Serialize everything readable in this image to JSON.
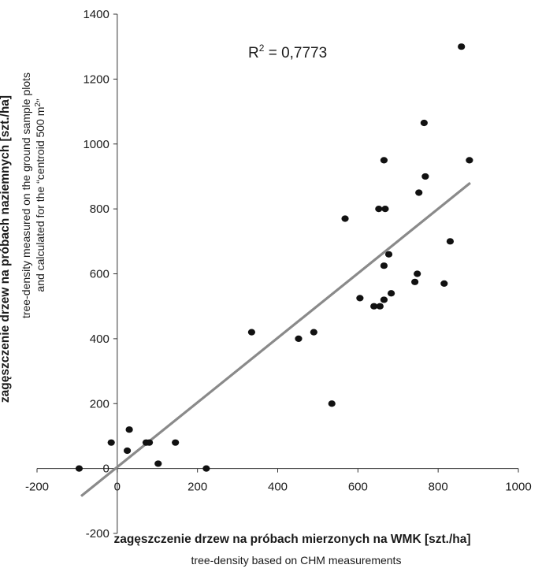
{
  "chart_data": {
    "type": "scatter",
    "annotation": {
      "prefix": "R",
      "sup": "2",
      "suffix": " = 0,7773"
    },
    "xlabel": "zagęszczenie drzew na próbach mierzonych na WMK [szt./ha]",
    "xlabel_sub": "tree-density based on CHM measurements",
    "ylabel": "zagęszczenie drzew na próbach naziemnych [szt./ha]",
    "ylabel_sub_1": "tree-density measured on the ground sample plots",
    "ylabel_sub_2": {
      "before": "and calculated for the “centroid 500 m",
      "sup": "2",
      "after": "”"
    },
    "xlim": [
      -200,
      1000
    ],
    "ylim": [
      -200,
      1400
    ],
    "xticks": [
      "-200",
      "0",
      "200",
      "400",
      "600",
      "800",
      "1000"
    ],
    "yticks": [
      "-200",
      "0",
      "200",
      "400",
      "600",
      "800",
      "1000",
      "1200",
      "1400"
    ],
    "grid": false,
    "trendline": {
      "x": [
        -90,
        880
      ],
      "y": [
        -85,
        880
      ],
      "color": "#8a8a8a"
    },
    "marker_color": "#111111",
    "points": [
      {
        "x": -95,
        "y": 0
      },
      {
        "x": -15,
        "y": 80
      },
      {
        "x": 25,
        "y": 55
      },
      {
        "x": 30,
        "y": 120
      },
      {
        "x": 72,
        "y": 80
      },
      {
        "x": 80,
        "y": 80
      },
      {
        "x": 102,
        "y": 15
      },
      {
        "x": 145,
        "y": 80
      },
      {
        "x": 222,
        "y": 0
      },
      {
        "x": 335,
        "y": 420
      },
      {
        "x": 452,
        "y": 400
      },
      {
        "x": 490,
        "y": 420
      },
      {
        "x": 535,
        "y": 200
      },
      {
        "x": 568,
        "y": 770
      },
      {
        "x": 605,
        "y": 525
      },
      {
        "x": 640,
        "y": 500
      },
      {
        "x": 655,
        "y": 500
      },
      {
        "x": 652,
        "y": 800
      },
      {
        "x": 665,
        "y": 625
      },
      {
        "x": 665,
        "y": 520
      },
      {
        "x": 665,
        "y": 950
      },
      {
        "x": 668,
        "y": 800
      },
      {
        "x": 677,
        "y": 660
      },
      {
        "x": 683,
        "y": 540
      },
      {
        "x": 742,
        "y": 575
      },
      {
        "x": 748,
        "y": 600
      },
      {
        "x": 752,
        "y": 850
      },
      {
        "x": 765,
        "y": 1065
      },
      {
        "x": 768,
        "y": 900
      },
      {
        "x": 815,
        "y": 570
      },
      {
        "x": 830,
        "y": 700
      },
      {
        "x": 858,
        "y": 1300
      },
      {
        "x": 878,
        "y": 950
      }
    ]
  }
}
